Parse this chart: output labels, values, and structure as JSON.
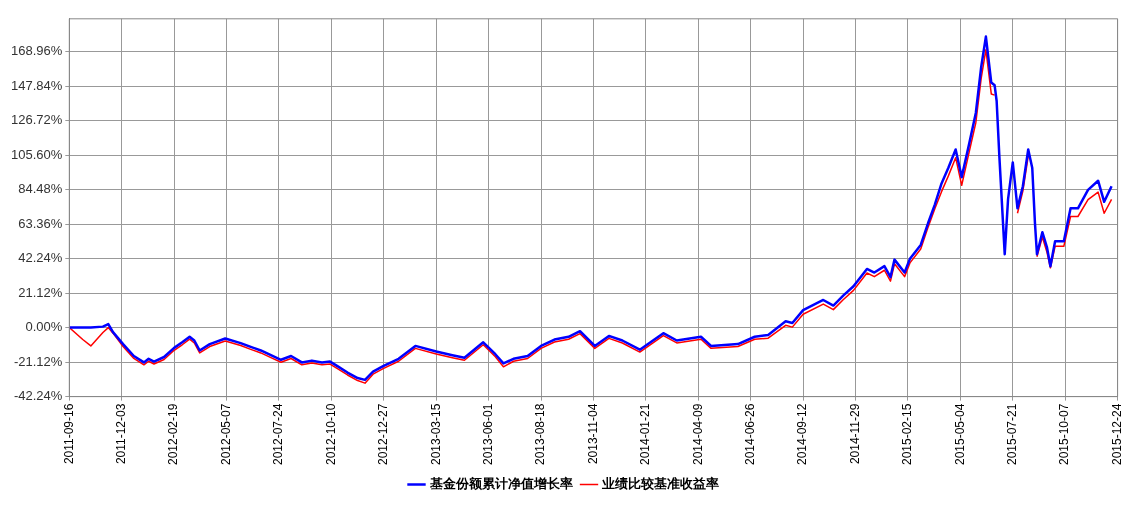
{
  "chart_data": {
    "type": "line",
    "x": [
      "2011-09-16",
      "2011-10-06",
      "2011-10-18",
      "2011-11-05",
      "2011-11-13",
      "2011-11-20",
      "2011-12-05",
      "2011-12-21",
      "2012-01-05",
      "2012-01-12",
      "2012-01-20",
      "2012-02-04",
      "2012-02-19",
      "2012-03-02",
      "2012-03-13",
      "2012-03-20",
      "2012-03-28",
      "2012-04-12",
      "2012-05-05",
      "2012-05-28",
      "2012-06-12",
      "2012-06-27",
      "2012-07-12",
      "2012-07-27",
      "2012-08-11",
      "2012-08-27",
      "2012-09-11",
      "2012-09-26",
      "2012-10-08",
      "2012-10-19",
      "2012-11-03",
      "2012-11-18",
      "2012-11-29",
      "2012-12-11",
      "2012-12-26",
      "2013-01-18",
      "2013-02-12",
      "2013-03-15",
      "2013-04-08",
      "2013-04-26",
      "2013-05-24",
      "2013-06-11",
      "2013-06-23",
      "2013-07-08",
      "2013-07-29",
      "2013-08-18",
      "2013-09-07",
      "2013-09-28",
      "2013-10-15",
      "2013-11-06",
      "2013-11-27",
      "2013-12-17",
      "2014-01-12",
      "2014-02-16",
      "2014-03-08",
      "2014-04-13",
      "2014-04-28",
      "2014-06-07",
      "2014-07-02",
      "2014-07-22",
      "2014-08-17",
      "2014-08-27",
      "2014-09-12",
      "2014-10-12",
      "2014-10-27",
      "2014-11-11",
      "2014-11-26",
      "2014-12-16",
      "2014-12-27",
      "2015-01-11",
      "2015-01-20",
      "2015-01-26",
      "2015-02-10",
      "2015-02-18",
      "2015-03-06",
      "2015-03-17",
      "2015-03-27",
      "2015-04-06",
      "2015-04-16",
      "2015-04-27",
      "2015-05-06",
      "2015-05-17",
      "2015-05-27",
      "2015-06-04",
      "2015-06-11",
      "2015-06-19",
      "2015-06-24",
      "2015-06-27",
      "2015-07-01",
      "2015-07-04",
      "2015-07-09",
      "2015-07-14",
      "2015-07-21",
      "2015-07-28",
      "2015-08-05",
      "2015-08-13",
      "2015-08-19",
      "2015-08-23",
      "2015-08-26",
      "2015-09-03",
      "2015-09-10",
      "2015-09-15",
      "2015-09-22",
      "2015-10-05",
      "2015-10-15",
      "2015-10-26",
      "2015-11-10",
      "2015-11-25",
      "2015-12-04",
      "2015-12-15"
    ],
    "series": [
      {
        "name": "基金份额累计净值增长率",
        "color": "#0000ff",
        "values": [
          0,
          0,
          0,
          0.6,
          2.2,
          -2.8,
          -10.1,
          -17.4,
          -21.3,
          -19.1,
          -20.8,
          -18.0,
          -12.4,
          -9.0,
          -5.6,
          -7.9,
          -14.0,
          -10.1,
          -6.7,
          -9.5,
          -11.8,
          -14.0,
          -16.9,
          -19.7,
          -17.4,
          -21.3,
          -20.2,
          -21.3,
          -20.8,
          -23.6,
          -27.5,
          -30.9,
          -32.0,
          -27.0,
          -23.6,
          -19.1,
          -11.2,
          -14.6,
          -16.9,
          -18.5,
          -9.0,
          -16.3,
          -21.9,
          -19.1,
          -17.4,
          -11.2,
          -7.3,
          -5.6,
          -2.2,
          -11.2,
          -5.1,
          -7.9,
          -13.5,
          -3.4,
          -7.9,
          -5.6,
          -11.2,
          -10.1,
          -5.6,
          -4.5,
          3.9,
          2.8,
          10.7,
          16.9,
          13.5,
          19.7,
          25.3,
          35.9,
          33.7,
          37.6,
          30.9,
          41.6,
          33.7,
          42.1,
          50.6,
          64.0,
          75.3,
          88.2,
          97.7,
          109.0,
          92.1,
          112.3,
          131.4,
          159.5,
          178.1,
          150.0,
          148.3,
          138.7,
          105.0,
          82.6,
          44.9,
          78.6,
          101.1,
          73.0,
          86.5,
          109.0,
          97.7,
          64.0,
          44.9,
          58.4,
          48.9,
          37.6,
          52.8,
          52.8,
          73.0,
          73.0,
          84.3,
          89.9,
          77.0,
          86.5
        ]
      },
      {
        "name": "业绩比较基准收益率",
        "color": "#ff0000",
        "values": [
          0,
          -7.3,
          -11.2,
          -3.0,
          0.0,
          -3.4,
          -11.6,
          -18.9,
          -22.8,
          -20.6,
          -22.3,
          -19.5,
          -13.9,
          -10.5,
          -7.1,
          -9.4,
          -15.5,
          -11.6,
          -8.2,
          -11.0,
          -13.3,
          -15.5,
          -18.4,
          -21.2,
          -18.9,
          -22.8,
          -21.7,
          -22.8,
          -22.3,
          -25.1,
          -29.0,
          -32.4,
          -34.0,
          -28.5,
          -25.1,
          -20.6,
          -12.7,
          -16.1,
          -18.4,
          -20.0,
          -10.5,
          -17.8,
          -24.0,
          -20.6,
          -18.9,
          -12.7,
          -8.8,
          -7.1,
          -3.7,
          -12.7,
          -6.6,
          -9.4,
          -15.0,
          -4.9,
          -9.4,
          -7.1,
          -12.7,
          -11.6,
          -7.1,
          -6.5,
          1.4,
          0.3,
          8.2,
          14.4,
          11.0,
          17.2,
          22.8,
          33.4,
          31.2,
          35.1,
          28.4,
          39.1,
          31.2,
          39.6,
          48.1,
          61.5,
          72.8,
          83.2,
          92.7,
          104.0,
          87.1,
          107.3,
          125.4,
          152.5,
          170.1,
          143.0,
          142.3,
          null,
          null,
          null,
          null,
          null,
          null,
          70.0,
          83.5,
          105.0,
          null,
          null,
          43.4,
          55.4,
          45.9,
          36.6,
          49.8,
          49.8,
          68.0,
          68.0,
          78.3,
          82.9,
          70.0,
          78.5
        ]
      }
    ],
    "xlim": [
      "2011-09-16",
      "2015-12-24"
    ],
    "xticks": [
      "2011-09-16",
      "2011-12-03",
      "2012-02-19",
      "2012-05-07",
      "2012-07-24",
      "2012-10-10",
      "2012-12-27",
      "2013-03-15",
      "2013-06-01",
      "2013-08-18",
      "2013-11-04",
      "2014-01-21",
      "2014-04-09",
      "2014-06-26",
      "2014-09-12",
      "2014-11-29",
      "2015-02-15",
      "2015-05-04",
      "2015-07-21",
      "2015-10-07",
      "2015-12-24"
    ],
    "ylim": [
      -42.24,
      189
    ],
    "yticks": [
      {
        "value": -42.24,
        "label": "-42.24%"
      },
      {
        "value": -21.12,
        "label": "-21.12%"
      },
      {
        "value": 0,
        "label": "0.00%"
      },
      {
        "value": 21.12,
        "label": "21.12%"
      },
      {
        "value": 42.24,
        "label": "42.24%"
      },
      {
        "value": 63.36,
        "label": "63.36%"
      },
      {
        "value": 84.48,
        "label": "84.48%"
      },
      {
        "value": 105.6,
        "label": "105.60%"
      },
      {
        "value": 126.72,
        "label": "126.72%"
      },
      {
        "value": 147.84,
        "label": "147.84%"
      },
      {
        "value": 168.96,
        "label": "168.96%"
      }
    ],
    "grid": true,
    "legend": "bottom",
    "marker": "none",
    "line_style": "solid"
  }
}
